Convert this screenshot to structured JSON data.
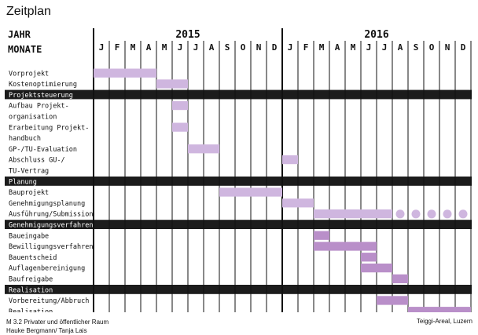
{
  "page": {
    "title": "Zeitplan",
    "footer_left_line1": "M 3.2 Privater und öffentlicher Raum",
    "footer_left_line2": "Hauke Bergmann/ Tanja Lais",
    "footer_right": "Teiggi-Areal, Luzern"
  },
  "colors": {
    "bar": "#cfb6df",
    "bar_dark": "#b98fc9",
    "section_bg": "#1c1c1c",
    "section_fg": "#ffffff",
    "grid": "#111111"
  },
  "chart_data": {
    "type": "gantt",
    "header_labels": [
      "JAHR",
      "MONATE"
    ],
    "years": [
      "2015",
      "2016"
    ],
    "months": [
      "J",
      "F",
      "M",
      "A",
      "M",
      "J",
      "J",
      "A",
      "S",
      "O",
      "N",
      "D",
      "J",
      "F",
      "M",
      "A",
      "M",
      "J",
      "J",
      "A",
      "S",
      "O",
      "N",
      "D"
    ],
    "rows": [
      {
        "label": "Vorprojekt",
        "kind": "task",
        "bars": [
          {
            "start": 0,
            "end": 4,
            "tone": "light"
          }
        ]
      },
      {
        "label": "Kostenoptimierung",
        "kind": "task",
        "bars": [
          {
            "start": 4,
            "end": 6,
            "tone": "light"
          }
        ]
      },
      {
        "label": "Projektsteuerung",
        "kind": "section"
      },
      {
        "label": "Aufbau Projekt-",
        "kind": "task",
        "bars": [
          {
            "start": 5,
            "end": 6,
            "tone": "light"
          }
        ]
      },
      {
        "label": "organisation",
        "kind": "cont"
      },
      {
        "label": "Erarbeitung Projekt-",
        "kind": "task",
        "bars": [
          {
            "start": 5,
            "end": 6,
            "tone": "light"
          }
        ]
      },
      {
        "label": "handbuch",
        "kind": "cont"
      },
      {
        "label": "GP-/TU-Evaluation",
        "kind": "task",
        "bars": [
          {
            "start": 6,
            "end": 8,
            "tone": "light"
          }
        ]
      },
      {
        "label": "Abschluss GU-/",
        "kind": "task",
        "bars": [
          {
            "start": 12,
            "end": 13,
            "tone": "light"
          }
        ]
      },
      {
        "label": "TU-Vertrag",
        "kind": "cont"
      },
      {
        "label": "Planung",
        "kind": "section"
      },
      {
        "label": "Bauprojekt",
        "kind": "task",
        "bars": [
          {
            "start": 8,
            "end": 12,
            "tone": "mid"
          }
        ]
      },
      {
        "label": "Genehmigungsplanung",
        "kind": "task",
        "bars": [
          {
            "start": 12,
            "end": 14,
            "tone": "mid"
          }
        ]
      },
      {
        "label": "Ausführung/Submission",
        "kind": "task",
        "bars": [
          {
            "start": 14,
            "end": 19,
            "tone": "mid"
          }
        ],
        "dots": [
          19,
          20,
          21,
          22,
          23
        ]
      },
      {
        "label": "Genehmigungsverfahren",
        "kind": "section"
      },
      {
        "label": "Baueingabe",
        "kind": "task",
        "bars": [
          {
            "start": 14,
            "end": 15,
            "tone": "dark"
          }
        ]
      },
      {
        "label": "Bewilligungsverfahren",
        "kind": "task",
        "bars": [
          {
            "start": 14,
            "end": 18,
            "tone": "dark"
          }
        ]
      },
      {
        "label": "Bauentscheid",
        "kind": "task",
        "bars": [
          {
            "start": 17,
            "end": 18,
            "tone": "dark"
          }
        ]
      },
      {
        "label": "Auflagenbereinigung",
        "kind": "task",
        "bars": [
          {
            "start": 17,
            "end": 19,
            "tone": "dark"
          }
        ]
      },
      {
        "label": "Baufreigabe",
        "kind": "task",
        "bars": [
          {
            "start": 19,
            "end": 20,
            "tone": "dark"
          }
        ]
      },
      {
        "label": "Realisation",
        "kind": "section"
      },
      {
        "label": "Vorbereitung/Abbruch",
        "kind": "task",
        "bars": [
          {
            "start": 18,
            "end": 20,
            "tone": "dark"
          }
        ]
      },
      {
        "label": "Realisation",
        "kind": "task",
        "bars": [
          {
            "start": 20,
            "end": 24,
            "tone": "dark"
          }
        ]
      }
    ]
  }
}
